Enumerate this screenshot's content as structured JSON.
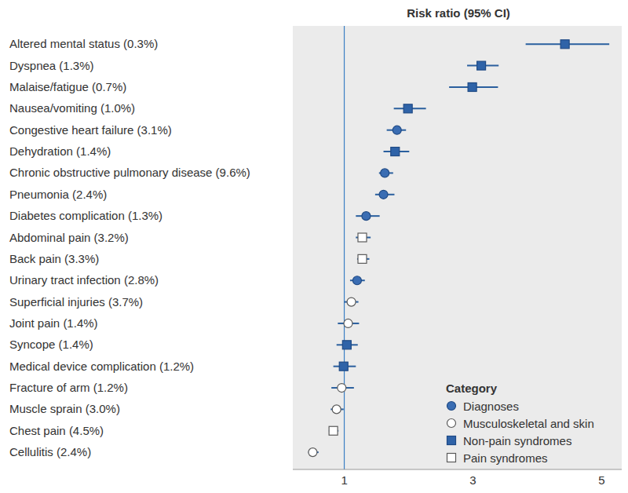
{
  "chart_data": {
    "type": "forest",
    "title": "Risk ratio (95% CI)",
    "categories": [
      "Altered mental status (0.3%)",
      "Dyspnea (1.3%)",
      "Malaise/fatigue (0.7%)",
      "Nausea/vomiting (1.0%)",
      "Congestive heart failure (3.1%)",
      "Dehydration (1.4%)",
      "Chronic obstructive pulmonary disease (9.6%)",
      "Pneumonia (2.4%)",
      "Diabetes complication (1.3%)",
      "Abdominal pain (3.2%)",
      "Back pain (3.3%)",
      "Urinary tract infection (2.8%)",
      "Superficial injuries (3.7%)",
      "Joint pain (1.4%)",
      "Syncope (1.4%)",
      "Medical device complication (1.2%)",
      "Fracture of arm (1.2%)",
      "Muscle sprain (3.0%)",
      "Chest pain (4.5%)",
      "Cellulitis (2.4%)"
    ],
    "series": [
      {
        "name": "Diagnoses",
        "marker": "circle",
        "color": "#3a6db3",
        "values": [
          null,
          null,
          null,
          null,
          1.82,
          null,
          1.63,
          1.61,
          1.34,
          null,
          null,
          1.2,
          null,
          null,
          null,
          null,
          null,
          null,
          null,
          null
        ],
        "ci_low": [
          null,
          null,
          null,
          null,
          1.66,
          null,
          1.54,
          1.48,
          1.18,
          null,
          null,
          1.09,
          null,
          null,
          null,
          null,
          null,
          null,
          null,
          null
        ],
        "ci_high": [
          null,
          null,
          null,
          null,
          1.96,
          null,
          1.76,
          1.78,
          1.55,
          null,
          null,
          1.32,
          null,
          null,
          null,
          null,
          null,
          null,
          null,
          null
        ]
      },
      {
        "name": "Musculoskeletal and skin",
        "marker": "open_circle",
        "color": "#5a5a5a",
        "values": [
          null,
          null,
          null,
          null,
          null,
          null,
          null,
          null,
          null,
          null,
          null,
          null,
          1.11,
          1.06,
          null,
          null,
          0.96,
          0.88,
          null,
          0.51
        ],
        "ci_low": [
          null,
          null,
          null,
          null,
          null,
          null,
          null,
          null,
          null,
          null,
          null,
          null,
          1.0,
          0.9,
          null,
          null,
          0.8,
          0.79,
          null,
          0.44
        ],
        "ci_high": [
          null,
          null,
          null,
          null,
          null,
          null,
          null,
          null,
          null,
          null,
          null,
          null,
          1.22,
          1.23,
          null,
          null,
          1.15,
          0.99,
          null,
          0.6
        ]
      },
      {
        "name": "Non-pain syndromes",
        "marker": "square",
        "color": "#2f63a8",
        "values": [
          4.43,
          3.13,
          2.99,
          1.99,
          null,
          1.79,
          null,
          null,
          null,
          null,
          null,
          null,
          null,
          null,
          1.04,
          0.99,
          null,
          null,
          null,
          null
        ],
        "ci_low": [
          3.82,
          2.91,
          2.63,
          1.77,
          null,
          1.61,
          null,
          null,
          null,
          null,
          null,
          null,
          null,
          null,
          0.88,
          0.83,
          null,
          null,
          null,
          null
        ],
        "ci_high": [
          5.12,
          3.4,
          3.39,
          2.27,
          null,
          2.01,
          null,
          null,
          null,
          null,
          null,
          null,
          null,
          null,
          1.21,
          1.18,
          null,
          null,
          null,
          null
        ]
      },
      {
        "name": "Pain syndromes",
        "marker": "open_square",
        "color": "#5a5a5a",
        "values": [
          null,
          null,
          null,
          null,
          null,
          null,
          null,
          null,
          null,
          1.28,
          1.28,
          null,
          null,
          null,
          null,
          null,
          null,
          null,
          0.83,
          null
        ],
        "ci_low": [
          null,
          null,
          null,
          null,
          null,
          null,
          null,
          null,
          null,
          1.18,
          1.2,
          null,
          null,
          null,
          null,
          null,
          null,
          null,
          0.76,
          null
        ],
        "ci_high": [
          null,
          null,
          null,
          null,
          null,
          null,
          null,
          null,
          null,
          1.41,
          1.39,
          null,
          null,
          null,
          null,
          null,
          null,
          null,
          0.91,
          null
        ]
      }
    ],
    "xlim": [
      0.2,
      5.35
    ],
    "xticks": [
      1,
      3,
      5
    ],
    "reference_value": 1,
    "legend": "lower right",
    "legend_title": "Category",
    "grid": false
  }
}
